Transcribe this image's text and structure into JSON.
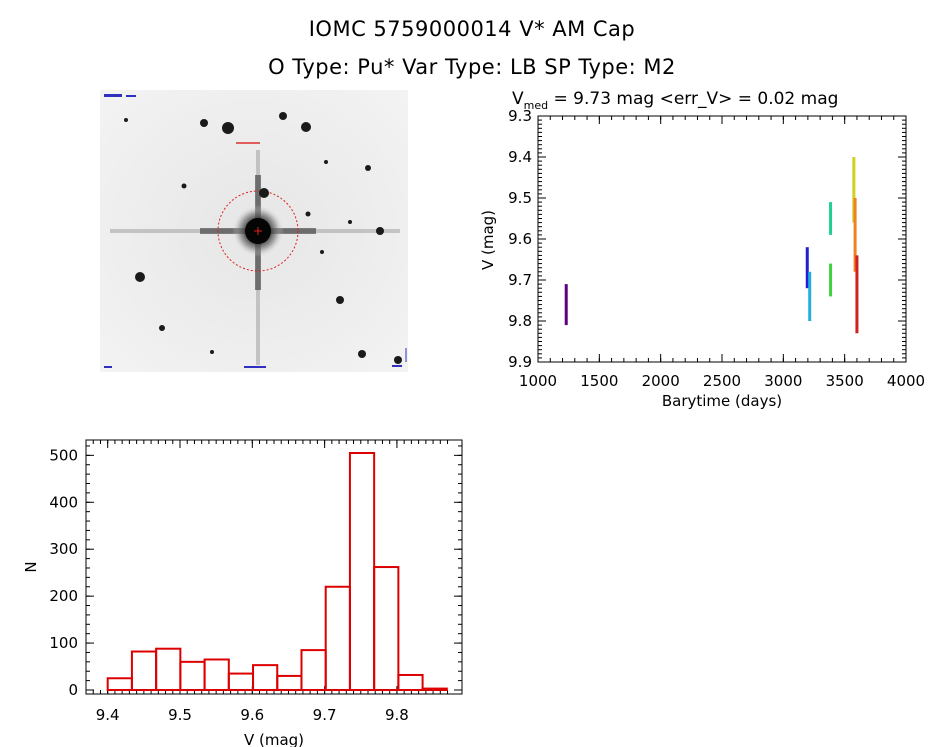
{
  "header": {
    "title": "IOMC 5759000014    V* AM Cap",
    "subtitle": "O Type: Pu*  Var Type: LB  SP Type: M2"
  },
  "lightcurve": {
    "vmed_label_main": "V",
    "vmed_label_sub": "med",
    "vmed_text": " = 9.73 mag <err_V> = 0.02 mag",
    "xlabel": "Barytime (days)",
    "ylabel": "V (mag)"
  },
  "histogram": {
    "xlabel": "V (mag)",
    "ylabel": "N"
  },
  "chart_data": [
    {
      "type": "scatter",
      "title": "V = 9.73 mag <err_V> = 0.02 mag",
      "xlabel": "Barytime (days)",
      "ylabel": "V (mag)",
      "xlim": [
        1000,
        4000
      ],
      "ylim": [
        9.9,
        9.3
      ],
      "y_inverted": true,
      "xticks": [
        1000,
        1500,
        2000,
        2500,
        3000,
        3500,
        4000
      ],
      "yticks": [
        9.3,
        9.4,
        9.5,
        9.6,
        9.7,
        9.8,
        9.9
      ],
      "series": [
        {
          "x": 1230,
          "ymin": 9.71,
          "ymax": 9.81,
          "color": "#5a0080"
        },
        {
          "x": 3195,
          "ymin": 9.62,
          "ymax": 9.72,
          "color": "#2020d0"
        },
        {
          "x": 3215,
          "ymin": 9.68,
          "ymax": 9.8,
          "color": "#20b0e0"
        },
        {
          "x": 3385,
          "ymin": 9.51,
          "ymax": 9.59,
          "color": "#20d090"
        },
        {
          "x": 3385,
          "ymin": 9.66,
          "ymax": 9.74,
          "color": "#40d040"
        },
        {
          "x": 3575,
          "ymin": 9.4,
          "ymax": 9.56,
          "color": "#d0d020"
        },
        {
          "x": 3585,
          "ymin": 9.5,
          "ymax": 9.68,
          "color": "#f08020"
        },
        {
          "x": 3600,
          "ymin": 9.64,
          "ymax": 9.83,
          "color": "#d02020"
        }
      ]
    },
    {
      "type": "bar",
      "xlabel": "V (mag)",
      "ylabel": "N",
      "xlim": [
        9.37,
        9.89
      ],
      "ylim": [
        0,
        530
      ],
      "xticks": [
        9.4,
        9.5,
        9.6,
        9.7,
        9.8
      ],
      "yticks": [
        0,
        100,
        200,
        300,
        400,
        500
      ],
      "bin_width": 0.0335,
      "bin_starts": [
        9.4,
        9.4335,
        9.467,
        9.5005,
        9.534,
        9.5675,
        9.601,
        9.6345,
        9.668,
        9.7015,
        9.735,
        9.7685,
        9.802,
        9.8355
      ],
      "values": [
        25,
        82,
        88,
        60,
        65,
        35,
        53,
        30,
        85,
        220,
        505,
        262,
        32,
        3
      ],
      "color": "#dd0000"
    }
  ]
}
